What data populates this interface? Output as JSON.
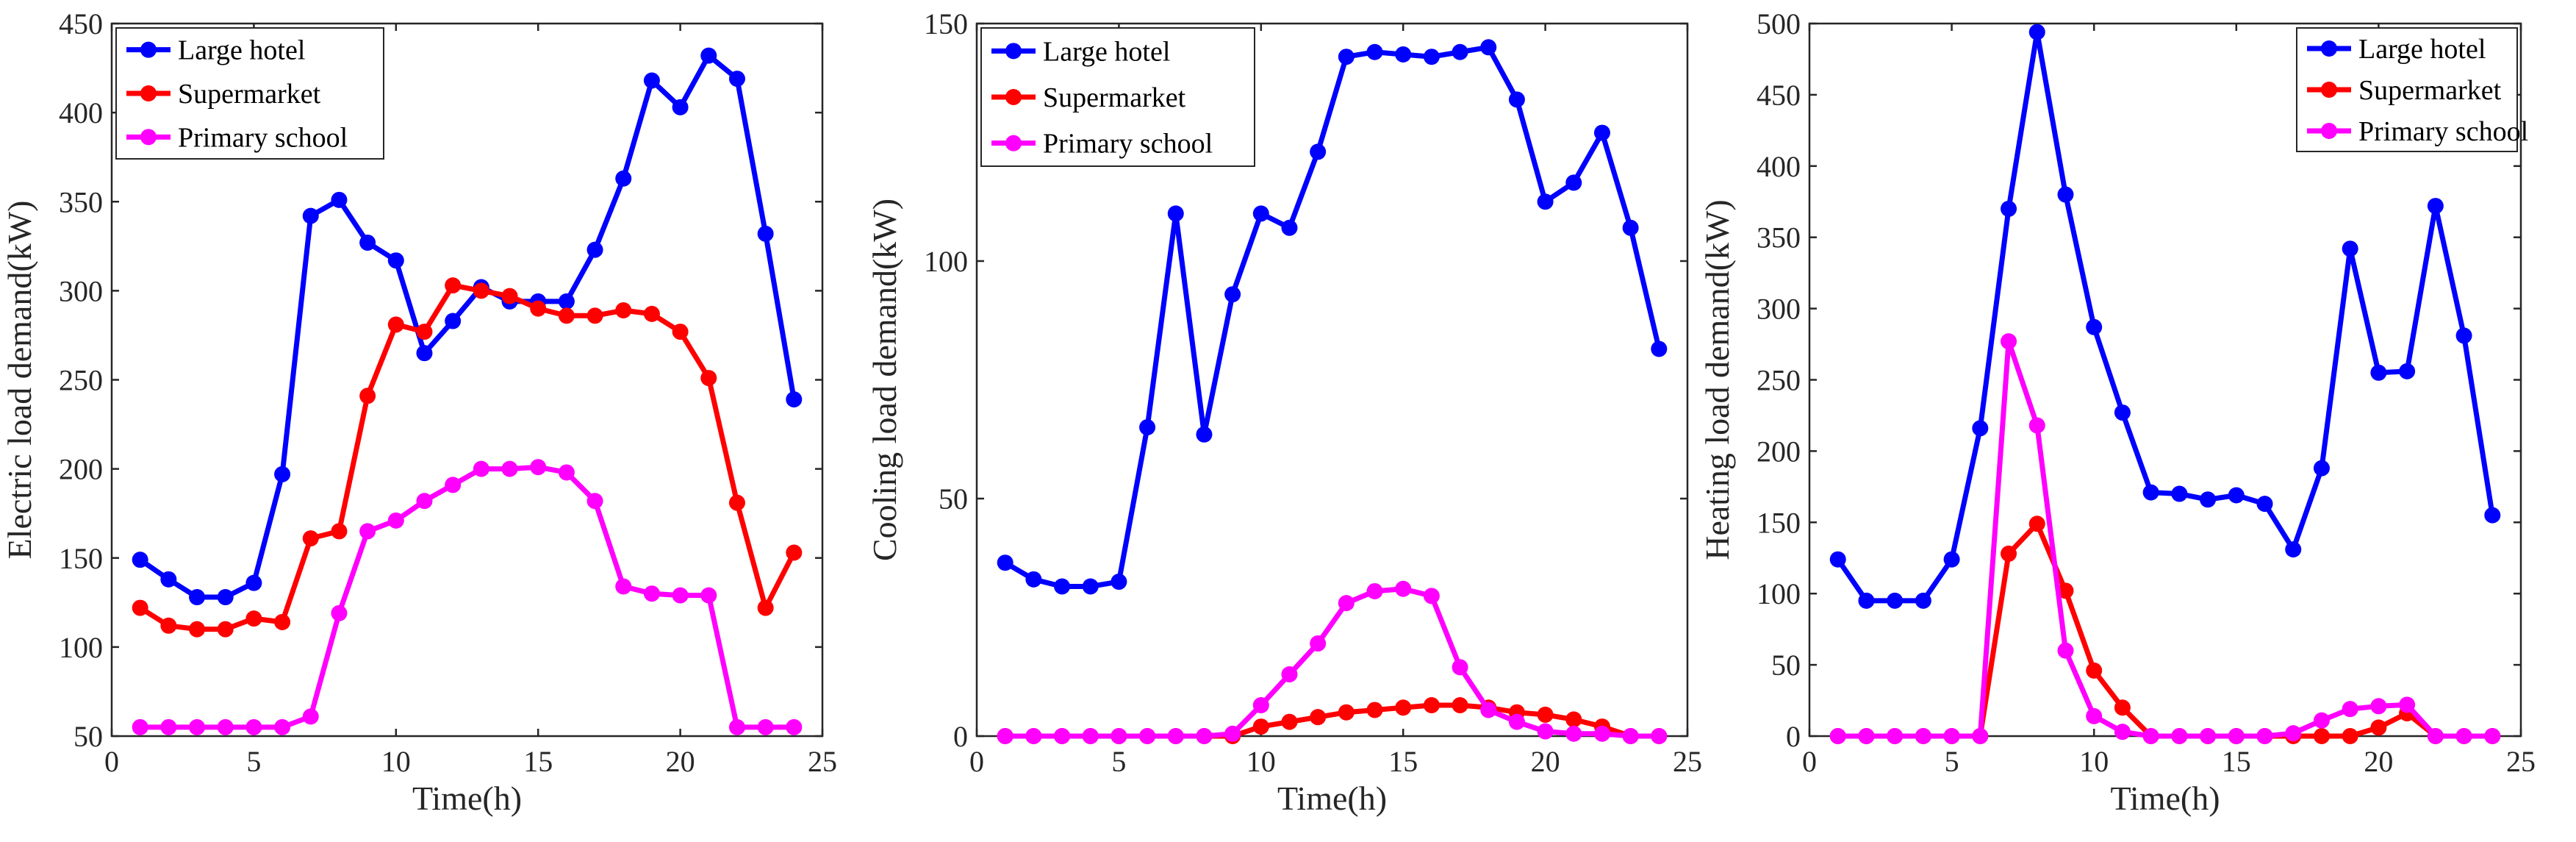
{
  "colors": {
    "large_hotel": "#0000ff",
    "supermarket": "#ff0000",
    "primary_school": "#ff00ff",
    "axis": "#262626"
  },
  "chart_data": [
    {
      "type": "line",
      "xlabel": "Time(h)",
      "ylabel": "Electric load demand(kW)",
      "xlim": [
        0,
        25
      ],
      "ylim": [
        50,
        450
      ],
      "xticks": [
        0,
        5,
        10,
        15,
        20,
        25
      ],
      "yticks": [
        50,
        100,
        150,
        200,
        250,
        300,
        350,
        400,
        450
      ],
      "legend_position": "top-left",
      "x": [
        1,
        2,
        3,
        4,
        5,
        6,
        7,
        8,
        9,
        10,
        11,
        12,
        13,
        14,
        15,
        16,
        17,
        18,
        19,
        20,
        21,
        22,
        23,
        24
      ],
      "series": [
        {
          "name": "Large hotel",
          "color": "#0000ff",
          "values": [
            149,
            138,
            128,
            128,
            136,
            197,
            342,
            351,
            327,
            317,
            265,
            283,
            302,
            294,
            294,
            294,
            323,
            363,
            418,
            403,
            432,
            419,
            332,
            239
          ]
        },
        {
          "name": "Supermarket",
          "color": "#ff0000",
          "values": [
            122,
            112,
            110,
            110,
            116,
            114,
            161,
            165,
            241,
            281,
            277,
            303,
            300,
            297,
            290,
            286,
            286,
            289,
            287,
            277,
            251,
            181,
            122,
            153
          ]
        },
        {
          "name": "Primary school",
          "color": "#ff00ff",
          "values": [
            55,
            55,
            55,
            55,
            55,
            55,
            61,
            119,
            165,
            171,
            182,
            191,
            200,
            200,
            201,
            198,
            182,
            134,
            130,
            129,
            129,
            55,
            55,
            55
          ]
        }
      ]
    },
    {
      "type": "line",
      "xlabel": "Time(h)",
      "ylabel": "Cooling load demand(kW)",
      "xlim": [
        0,
        25
      ],
      "ylim": [
        0,
        150
      ],
      "xticks": [
        0,
        5,
        10,
        15,
        20,
        25
      ],
      "yticks": [
        0,
        50,
        100,
        150
      ],
      "legend_position": "top-left",
      "x": [
        1,
        2,
        3,
        4,
        5,
        6,
        7,
        8,
        9,
        10,
        11,
        12,
        13,
        14,
        15,
        16,
        17,
        18,
        19,
        20,
        21,
        22,
        23,
        24
      ],
      "series": [
        {
          "name": "Large hotel",
          "color": "#0000ff",
          "values": [
            36.5,
            33,
            31.5,
            31.5,
            32.5,
            65,
            110,
            63.5,
            93,
            110,
            107,
            123,
            143,
            144,
            143.5,
            143,
            144,
            145,
            134,
            112.5,
            116.5,
            127,
            107,
            81.5
          ]
        },
        {
          "name": "Supermarket",
          "color": "#ff0000",
          "values": [
            0,
            0,
            0,
            0,
            0,
            0,
            0,
            0,
            0,
            2,
            3,
            4,
            5,
            5.5,
            6,
            6.5,
            6.5,
            6,
            5,
            4.5,
            3.5,
            2,
            0,
            0
          ]
        },
        {
          "name": "Primary school",
          "color": "#ff00ff",
          "values": [
            0,
            0,
            0,
            0,
            0,
            0,
            0,
            0,
            0.5,
            6.5,
            13,
            19.5,
            28,
            30.5,
            31,
            29.5,
            14.5,
            5.5,
            3,
            1,
            0.5,
            0.5,
            0,
            0
          ]
        }
      ]
    },
    {
      "type": "line",
      "xlabel": "Time(h)",
      "ylabel": "Heating load demand(kW)",
      "xlim": [
        0,
        25
      ],
      "ylim": [
        0,
        500
      ],
      "xticks": [
        0,
        5,
        10,
        15,
        20,
        25
      ],
      "yticks": [
        0,
        50,
        100,
        150,
        200,
        250,
        300,
        350,
        400,
        450,
        500
      ],
      "legend_position": "top-right",
      "x": [
        1,
        2,
        3,
        4,
        5,
        6,
        7,
        8,
        9,
        10,
        11,
        12,
        13,
        14,
        15,
        16,
        17,
        18,
        19,
        20,
        21,
        22,
        23,
        24
      ],
      "series": [
        {
          "name": "Large hotel",
          "color": "#0000ff",
          "values": [
            124,
            95,
            95,
            95,
            124,
            216,
            370,
            494,
            380,
            287,
            227,
            171,
            170,
            166,
            169,
            163,
            131,
            188,
            342,
            255,
            256,
            372,
            281,
            155
          ]
        },
        {
          "name": "Supermarket",
          "color": "#ff0000",
          "values": [
            0,
            0,
            0,
            0,
            0,
            0,
            128,
            149,
            102,
            46,
            20,
            0,
            0,
            0,
            0,
            0,
            0,
            0,
            0,
            6,
            16,
            0,
            0,
            0
          ]
        },
        {
          "name": "Primary school",
          "color": "#ff00ff",
          "values": [
            0,
            0,
            0,
            0,
            0,
            0,
            277,
            218,
            60,
            14,
            3,
            0,
            0,
            0,
            0,
            0,
            2,
            11,
            19,
            21,
            22,
            0,
            0,
            0
          ]
        }
      ]
    }
  ]
}
